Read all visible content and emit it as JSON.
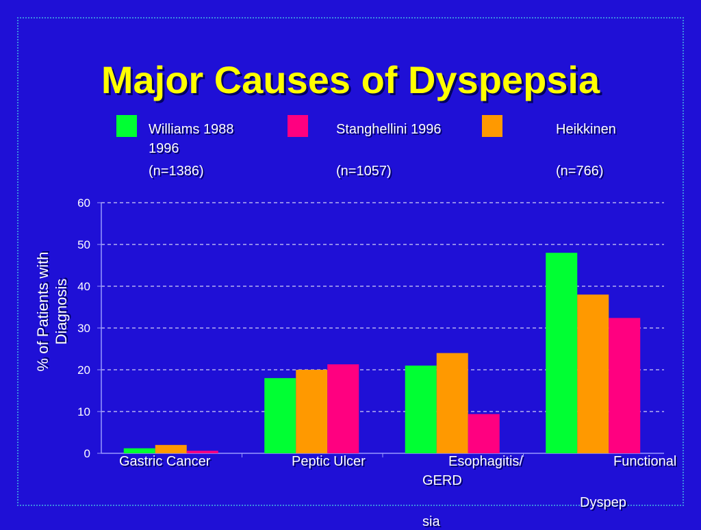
{
  "slide": {
    "title": "Major Causes of Dyspepsia"
  },
  "legend": [
    {
      "name_line": "Williams 1988",
      "n": "(n=1386)",
      "color": "#00ff33"
    },
    {
      "name_line": "Stanghellini 1996",
      "n": "(n=1057)",
      "color": "#ff0080"
    },
    {
      "name_line": "Heikkinen",
      "n": "(n=766)",
      "color": "#ff9900"
    }
  ],
  "legend_wrap_text": "1996",
  "category_labels": {
    "gastric": "Gastric Cancer",
    "peptic": "Peptic Ulcer",
    "esoph_1": "Esophagitis/",
    "esoph_2": "GERD",
    "func_1": "Functional",
    "func_2": "Dyspep",
    "func_3": "sia"
  },
  "chart_data": {
    "type": "bar",
    "ylabel_line1": "% of Patients with",
    "ylabel_line2": "Diagnosis",
    "ylim": [
      0,
      60
    ],
    "yticks": [
      "0",
      "10",
      "20",
      "30",
      "40",
      "50",
      "60"
    ],
    "grid": true,
    "categories": [
      "Gastric Cancer",
      "Peptic Ulcer",
      "Esophagitis/ GERD",
      "Functional Dyspepsia"
    ],
    "series": [
      {
        "color": "#00ff33",
        "values": [
          1.2,
          18,
          21,
          48
        ]
      },
      {
        "color": "#ff9900",
        "values": [
          2,
          20,
          24,
          38
        ]
      },
      {
        "color": "#ff0080",
        "values": [
          0.6,
          21.3,
          9.4,
          32.4
        ]
      }
    ]
  }
}
